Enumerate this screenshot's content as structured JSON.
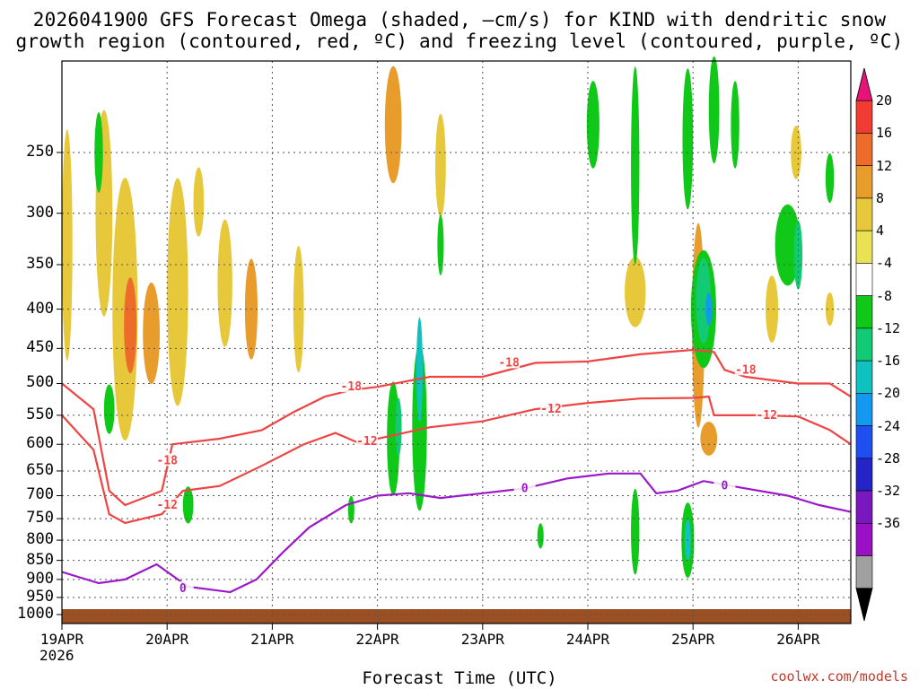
{
  "title_line1": "2026041900 GFS Forecast Omega (shaded, –cm/s) for KIND with dendritic snow",
  "title_line2": "growth region (contoured, red, ºC) and freezing level (contoured, purple, ºC)",
  "xlabel": "Forecast Time (UTC)",
  "year_label": "2026",
  "credit": "coolwx.com/models",
  "chart_data": {
    "type": "heatmap",
    "y_axis": {
      "label": "",
      "scale": "log-pressure",
      "range_hPa": [
        1000,
        190
      ],
      "ticks": [
        250,
        300,
        350,
        400,
        450,
        500,
        550,
        600,
        650,
        700,
        750,
        800,
        850,
        900,
        950,
        1000
      ]
    },
    "x_axis": {
      "label": "Forecast Time (UTC)",
      "start": "19APR",
      "end_days": 7.5,
      "ticks": [
        "19APR",
        "20APR",
        "21APR",
        "22APR",
        "23APR",
        "24APR",
        "25APR",
        "26APR"
      ]
    },
    "colorbar": {
      "levels": [
        20,
        16,
        12,
        8,
        4,
        -4,
        -8,
        -12,
        -16,
        -20,
        -24,
        -28,
        -32,
        -36
      ],
      "colors": [
        "#e8137a",
        "#f03c32",
        "#ee6c2a",
        "#e79c2c",
        "#e6c83a",
        "#e9e255",
        "#ffffff",
        "#0fc817",
        "#13ca74",
        "#10c2bf",
        "#129af0",
        "#1f4ff0",
        "#2424c8",
        "#7a18c0",
        "#9a10c4",
        "#a0a0a0",
        "#000000"
      ]
    },
    "fill_blobs": [
      {
        "d": 0.05,
        "p": 330,
        "w": 0.05,
        "h": 220,
        "color": "#e6c83a"
      },
      {
        "d": 0.4,
        "p": 300,
        "w": 0.08,
        "h": 180,
        "color": "#e6c83a"
      },
      {
        "d": 0.6,
        "p": 400,
        "w": 0.12,
        "h": 300,
        "color": "#e6c83a"
      },
      {
        "d": 0.65,
        "p": 420,
        "w": 0.06,
        "h": 120,
        "color": "#ee6c2a"
      },
      {
        "d": 0.85,
        "p": 430,
        "w": 0.08,
        "h": 130,
        "color": "#e79c2c"
      },
      {
        "d": 1.1,
        "p": 380,
        "w": 0.1,
        "h": 250,
        "color": "#e6c83a"
      },
      {
        "d": 1.3,
        "p": 290,
        "w": 0.05,
        "h": 60,
        "color": "#e6c83a"
      },
      {
        "d": 1.55,
        "p": 370,
        "w": 0.07,
        "h": 140,
        "color": "#e6c83a"
      },
      {
        "d": 1.8,
        "p": 400,
        "w": 0.06,
        "h": 120,
        "color": "#e79c2c"
      },
      {
        "d": 2.25,
        "p": 400,
        "w": 0.05,
        "h": 150,
        "color": "#e6c83a"
      },
      {
        "d": 3.15,
        "p": 230,
        "w": 0.08,
        "h": 80,
        "color": "#e79c2c"
      },
      {
        "d": 3.6,
        "p": 260,
        "w": 0.05,
        "h": 80,
        "color": "#e6c83a"
      },
      {
        "d": 5.45,
        "p": 380,
        "w": 0.1,
        "h": 80,
        "color": "#e6c83a"
      },
      {
        "d": 6.05,
        "p": 420,
        "w": 0.06,
        "h": 250,
        "color": "#e79c2c"
      },
      {
        "d": 6.15,
        "p": 590,
        "w": 0.08,
        "h": 60,
        "color": "#e79c2c"
      },
      {
        "d": 6.75,
        "p": 400,
        "w": 0.06,
        "h": 80,
        "color": "#e6c83a"
      },
      {
        "d": 6.98,
        "p": 250,
        "w": 0.05,
        "h": 40,
        "color": "#e6c83a"
      },
      {
        "d": 7.3,
        "p": 400,
        "w": 0.04,
        "h": 40,
        "color": "#e6c83a"
      },
      {
        "d": 0.45,
        "p": 540,
        "w": 0.05,
        "h": 80,
        "color": "#0fc817"
      },
      {
        "d": 0.35,
        "p": 250,
        "w": 0.04,
        "h": 60,
        "color": "#0fc817"
      },
      {
        "d": 1.2,
        "p": 720,
        "w": 0.05,
        "h": 80,
        "color": "#0fc817"
      },
      {
        "d": 2.75,
        "p": 730,
        "w": 0.03,
        "h": 60,
        "color": "#0fc817"
      },
      {
        "d": 3.15,
        "p": 590,
        "w": 0.06,
        "h": 200,
        "color": "#0fc817"
      },
      {
        "d": 3.2,
        "p": 570,
        "w": 0.03,
        "h": 100,
        "color": "#13ca74"
      },
      {
        "d": 3.4,
        "p": 570,
        "w": 0.07,
        "h": 280,
        "color": "#0fc817"
      },
      {
        "d": 3.4,
        "p": 480,
        "w": 0.03,
        "h": 150,
        "color": "#10c2bf"
      },
      {
        "d": 3.6,
        "p": 330,
        "w": 0.03,
        "h": 60,
        "color": "#0fc817"
      },
      {
        "d": 4.55,
        "p": 790,
        "w": 0.03,
        "h": 60,
        "color": "#0fc817"
      },
      {
        "d": 5.05,
        "p": 230,
        "w": 0.06,
        "h": 60,
        "color": "#0fc817"
      },
      {
        "d": 5.45,
        "p": 780,
        "w": 0.04,
        "h": 200,
        "color": "#0fc817"
      },
      {
        "d": 5.45,
        "p": 260,
        "w": 0.04,
        "h": 150,
        "color": "#0fc817"
      },
      {
        "d": 5.95,
        "p": 240,
        "w": 0.05,
        "h": 100,
        "color": "#0fc817"
      },
      {
        "d": 5.95,
        "p": 800,
        "w": 0.06,
        "h": 180,
        "color": "#0fc817"
      },
      {
        "d": 5.95,
        "p": 800,
        "w": 0.03,
        "h": 100,
        "color": "#10c2bf"
      },
      {
        "d": 6.1,
        "p": 400,
        "w": 0.12,
        "h": 140,
        "color": "#0fc817"
      },
      {
        "d": 6.1,
        "p": 390,
        "w": 0.07,
        "h": 100,
        "color": "#13ca74"
      },
      {
        "d": 6.15,
        "p": 400,
        "w": 0.03,
        "h": 40,
        "color": "#129af0"
      },
      {
        "d": 6.2,
        "p": 220,
        "w": 0.05,
        "h": 70,
        "color": "#0fc817"
      },
      {
        "d": 6.4,
        "p": 230,
        "w": 0.04,
        "h": 60,
        "color": "#0fc817"
      },
      {
        "d": 6.9,
        "p": 330,
        "w": 0.12,
        "h": 80,
        "color": "#0fc817"
      },
      {
        "d": 7.0,
        "p": 340,
        "w": 0.04,
        "h": 70,
        "color": "#13ca74"
      },
      {
        "d": 7.3,
        "p": 270,
        "w": 0.04,
        "h": 40,
        "color": "#0fc817"
      }
    ],
    "contours": [
      {
        "value": -18,
        "color": "#ee4444",
        "label": "-18",
        "points": [
          [
            0,
            500
          ],
          [
            0.3,
            540
          ],
          [
            0.45,
            690
          ],
          [
            0.6,
            720
          ],
          [
            0.95,
            690
          ],
          [
            1.05,
            600
          ],
          [
            1.5,
            590
          ],
          [
            1.9,
            575
          ],
          [
            2.2,
            545
          ],
          [
            2.5,
            520
          ],
          [
            2.75,
            510
          ],
          [
            3.0,
            505
          ],
          [
            3.5,
            490
          ],
          [
            4.0,
            490
          ],
          [
            4.5,
            470
          ],
          [
            5.0,
            468
          ],
          [
            5.5,
            458
          ],
          [
            6.0,
            452
          ],
          [
            6.2,
            455
          ],
          [
            6.3,
            480
          ],
          [
            6.5,
            490
          ],
          [
            7.0,
            500
          ],
          [
            7.3,
            500
          ],
          [
            7.5,
            520
          ]
        ],
        "labels": [
          [
            1.0,
            630
          ],
          [
            2.75,
            505
          ],
          [
            4.25,
            470
          ],
          [
            6.5,
            480
          ]
        ]
      },
      {
        "value": -12,
        "color": "#ee4444",
        "label": "-12",
        "points": [
          [
            0,
            550
          ],
          [
            0.3,
            610
          ],
          [
            0.45,
            740
          ],
          [
            0.6,
            760
          ],
          [
            0.95,
            740
          ],
          [
            1.15,
            690
          ],
          [
            1.5,
            680
          ],
          [
            1.9,
            640
          ],
          [
            2.3,
            600
          ],
          [
            2.6,
            580
          ],
          [
            2.85,
            600
          ],
          [
            3.0,
            590
          ],
          [
            3.5,
            570
          ],
          [
            4.0,
            560
          ],
          [
            4.5,
            540
          ],
          [
            5.0,
            530
          ],
          [
            5.5,
            523
          ],
          [
            6.0,
            522
          ],
          [
            6.15,
            520
          ],
          [
            6.2,
            550
          ],
          [
            6.6,
            550
          ],
          [
            7.0,
            552
          ],
          [
            7.3,
            575
          ],
          [
            7.5,
            600
          ]
        ],
        "labels": [
          [
            1.0,
            720
          ],
          [
            2.9,
            595
          ],
          [
            4.65,
            540
          ],
          [
            6.7,
            550
          ]
        ]
      },
      {
        "value": 0,
        "color": "#9b19c8",
        "label": "0",
        "points": [
          [
            0,
            880
          ],
          [
            0.35,
            910
          ],
          [
            0.6,
            900
          ],
          [
            0.9,
            860
          ],
          [
            1.2,
            920
          ],
          [
            1.6,
            935
          ],
          [
            1.85,
            900
          ],
          [
            2.1,
            830
          ],
          [
            2.35,
            770
          ],
          [
            2.7,
            720
          ],
          [
            3.0,
            700
          ],
          [
            3.3,
            695
          ],
          [
            3.6,
            705
          ],
          [
            4.0,
            695
          ],
          [
            4.4,
            685
          ],
          [
            4.8,
            665
          ],
          [
            5.2,
            655
          ],
          [
            5.5,
            655
          ],
          [
            5.65,
            695
          ],
          [
            5.85,
            690
          ],
          [
            6.1,
            670
          ],
          [
            6.5,
            685
          ],
          [
            6.9,
            700
          ],
          [
            7.2,
            720
          ],
          [
            7.5,
            735
          ]
        ],
        "labels": [
          [
            1.15,
            925
          ],
          [
            4.4,
            685
          ],
          [
            6.3,
            680
          ]
        ]
      }
    ]
  }
}
